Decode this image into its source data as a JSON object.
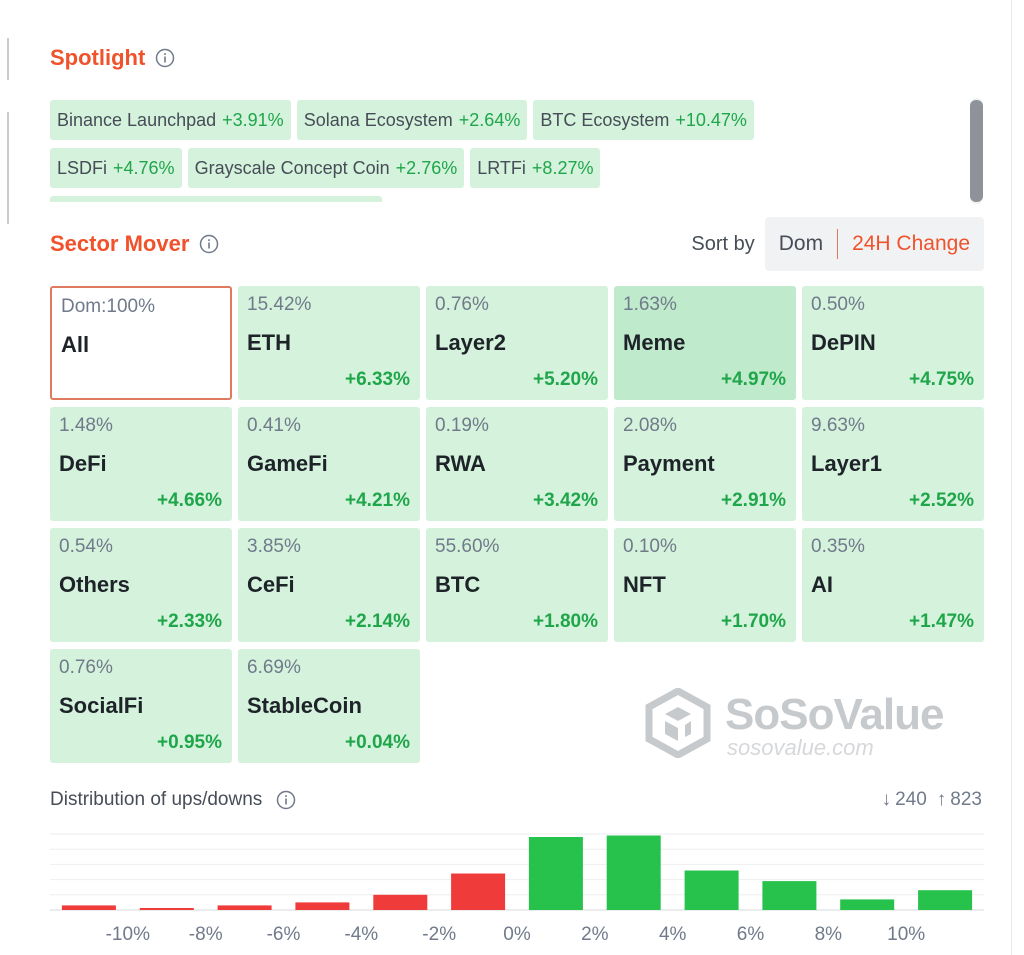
{
  "spotlight": {
    "title": "Spotlight",
    "row1": [
      {
        "label": "Binance Launchpad",
        "change": "+3.91%"
      },
      {
        "label": "Solana Ecosystem",
        "change": "+2.64%"
      },
      {
        "label": "BTC Ecosystem",
        "change": "+10.47%"
      }
    ],
    "row2": [
      {
        "label": "LSDFi",
        "change": "+4.76%"
      },
      {
        "label": "Grayscale Concept Coin",
        "change": "+2.76%"
      },
      {
        "label": "LRTFi",
        "change": "+8.27%"
      }
    ]
  },
  "sector_mover": {
    "title": "Sector Mover",
    "sort_label": "Sort by",
    "sort_options": [
      "Dom",
      "24H Change"
    ],
    "active_sort": "24H Change",
    "sectors": [
      {
        "dom": "Dom:100%",
        "name": "All",
        "change": ""
      },
      {
        "dom": "15.42%",
        "name": "ETH",
        "change": "+6.33%"
      },
      {
        "dom": "0.76%",
        "name": "Layer2",
        "change": "+5.20%"
      },
      {
        "dom": "1.63%",
        "name": "Meme",
        "change": "+4.97%"
      },
      {
        "dom": "0.50%",
        "name": "DePIN",
        "change": "+4.75%"
      },
      {
        "dom": "1.48%",
        "name": "DeFi",
        "change": "+4.66%"
      },
      {
        "dom": "0.41%",
        "name": "GameFi",
        "change": "+4.21%"
      },
      {
        "dom": "0.19%",
        "name": "RWA",
        "change": "+3.42%"
      },
      {
        "dom": "2.08%",
        "name": "Payment",
        "change": "+2.91%"
      },
      {
        "dom": "9.63%",
        "name": "Layer1",
        "change": "+2.52%"
      },
      {
        "dom": "0.54%",
        "name": "Others",
        "change": "+2.33%"
      },
      {
        "dom": "3.85%",
        "name": "CeFi",
        "change": "+2.14%"
      },
      {
        "dom": "55.60%",
        "name": "BTC",
        "change": "+1.80%"
      },
      {
        "dom": "0.10%",
        "name": "NFT",
        "change": "+1.70%"
      },
      {
        "dom": "0.35%",
        "name": "AI",
        "change": "+1.47%"
      },
      {
        "dom": "0.76%",
        "name": "SocialFi",
        "change": "+0.95%"
      },
      {
        "dom": "6.69%",
        "name": "StableCoin",
        "change": "+0.04%"
      }
    ]
  },
  "watermark": {
    "brand": "SoSoValue",
    "site": "sosovalue.com"
  },
  "distribution": {
    "title": "Distribution of ups/downs",
    "down_arrow": "↓",
    "down_count": "240",
    "up_arrow": "↑",
    "up_count": "823"
  },
  "colors": {
    "accent": "#f0522b",
    "up": "#1fa64a",
    "bar_up": "#27c24c",
    "bar_down": "#f03b3b",
    "tile": "#d4f2dc"
  },
  "chart_data": {
    "type": "bar",
    "categories": [
      ">10% down",
      "-10%~-8%",
      "-8%~-6%",
      "-6%~-4%",
      "-4%~-2%",
      "-2%~0%",
      "0%~2%",
      "2%~4%",
      "4%~6%",
      "6%~8%",
      "8%~10%",
      ">10% up"
    ],
    "values": [
      3,
      1,
      3,
      5,
      10,
      24,
      48,
      49,
      26,
      19,
      7,
      13
    ],
    "directions": [
      "down",
      "down",
      "down",
      "down",
      "down",
      "down",
      "up",
      "up",
      "up",
      "up",
      "up",
      "up"
    ],
    "tick_labels": [
      "-10%",
      "-8%",
      "-6%",
      "-4%",
      "-2%",
      "0%",
      "2%",
      "4%",
      "6%",
      "8%",
      "10%"
    ],
    "ylim": [
      0,
      50
    ],
    "grid": true
  }
}
